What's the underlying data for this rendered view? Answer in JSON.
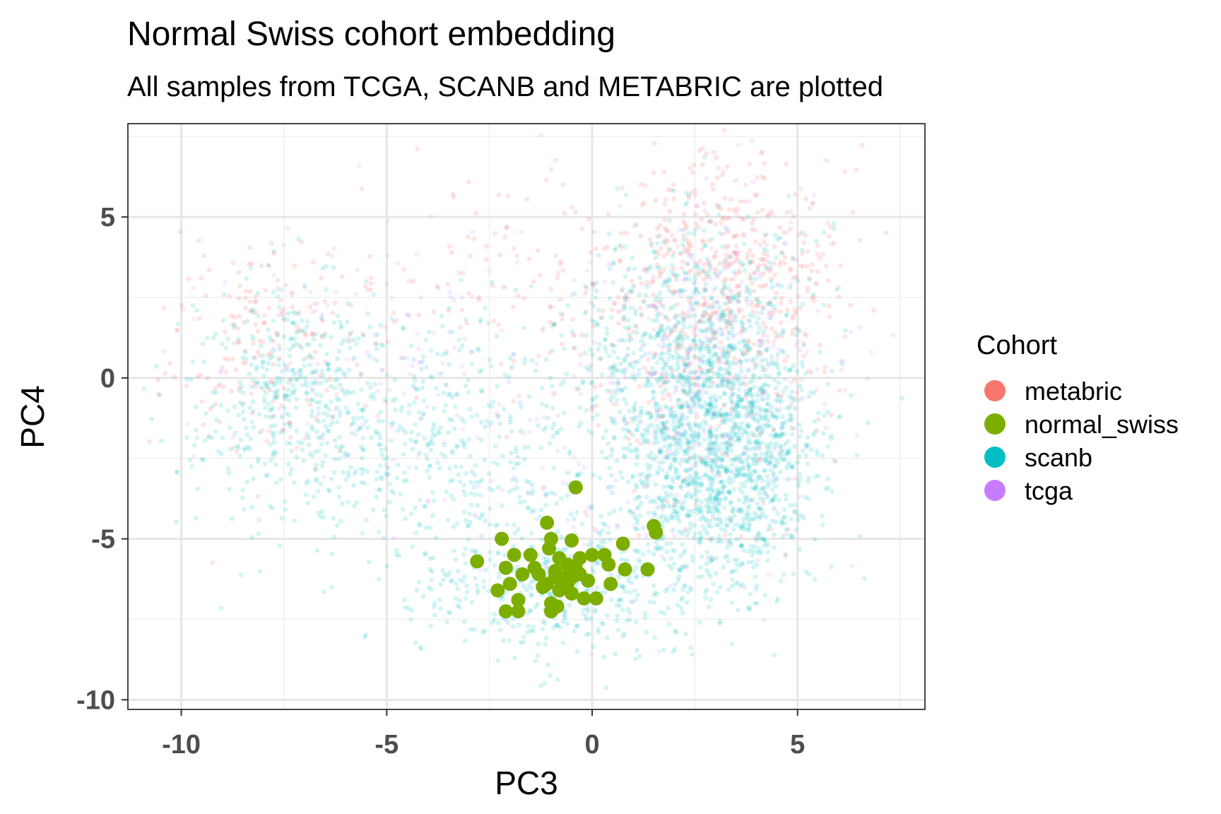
{
  "chart_data": {
    "type": "scatter",
    "title": "Normal Swiss cohort embedding",
    "subtitle": "All samples from TCGA, SCANB and METABRIC are plotted",
    "xlabel": "PC3",
    "ylabel": "PC4",
    "xlim": [
      -11.3,
      8.1
    ],
    "ylim": [
      -10.3,
      7.9
    ],
    "x_ticks": [
      -10,
      -5,
      0,
      5
    ],
    "y_ticks": [
      -10,
      -5,
      0,
      5
    ],
    "x_tick_labels": [
      "-10",
      "-5",
      "0",
      "5"
    ],
    "y_tick_labels": [
      "-10",
      "-5",
      "0",
      "5"
    ],
    "grid": true,
    "legend": {
      "title": "Cohort",
      "placement": "right",
      "entries": [
        "metabric",
        "normal_swiss",
        "scanb",
        "tcga"
      ]
    },
    "colors": {
      "metabric": "#F8766D",
      "normal_swiss": "#7CAE00",
      "scanb": "#00BFC4",
      "tcga": "#C77CFF"
    },
    "background_series": [
      {
        "name": "metabric",
        "alpha": 0.18,
        "note_count": 900,
        "regions": [
          {
            "cx": 3.5,
            "cy": 3.2,
            "sx": 1.3,
            "sy": 1.9,
            "w": 0.45
          },
          {
            "cx": -7.8,
            "cy": 1.0,
            "sx": 1.2,
            "sy": 1.8,
            "w": 0.2
          },
          {
            "cx": -1.0,
            "cy": 3.0,
            "sx": 2.5,
            "sy": 1.6,
            "w": 0.2
          },
          {
            "cx": 2.5,
            "cy": -2.0,
            "sx": 1.6,
            "sy": 2.2,
            "w": 0.15
          }
        ]
      },
      {
        "name": "scanb",
        "alpha": 0.16,
        "note_count": 3400,
        "regions": [
          {
            "cx": 3.0,
            "cy": -2.3,
            "sx": 1.2,
            "sy": 2.2,
            "w": 0.45
          },
          {
            "cx": 2.5,
            "cy": 1.5,
            "sx": 1.4,
            "sy": 1.8,
            "w": 0.15
          },
          {
            "cx": -7.5,
            "cy": -0.5,
            "sx": 1.2,
            "sy": 1.7,
            "w": 0.12
          },
          {
            "cx": -3.5,
            "cy": -2.0,
            "sx": 2.4,
            "sy": 2.0,
            "w": 0.16
          },
          {
            "cx": -0.8,
            "cy": -6.5,
            "sx": 1.8,
            "sy": 1.1,
            "w": 0.12
          }
        ]
      },
      {
        "name": "tcga",
        "alpha": 0.14,
        "note_count": 500,
        "regions": [
          {
            "cx": 3.0,
            "cy": 1.0,
            "sx": 1.6,
            "sy": 2.5,
            "w": 0.5
          },
          {
            "cx": -5.0,
            "cy": 0.5,
            "sx": 2.5,
            "sy": 2.0,
            "w": 0.3
          },
          {
            "cx": 0.5,
            "cy": -3.0,
            "sx": 2.0,
            "sy": 2.5,
            "w": 0.2
          }
        ]
      }
    ],
    "series": [
      {
        "name": "normal_swiss",
        "points": [
          [
            -0.4,
            -3.4
          ],
          [
            -1.1,
            -4.5
          ],
          [
            1.5,
            -4.6
          ],
          [
            1.55,
            -4.8
          ],
          [
            -2.2,
            -5.0
          ],
          [
            -1.0,
            -5.0
          ],
          [
            -0.5,
            -5.05
          ],
          [
            0.75,
            -5.15
          ],
          [
            -2.8,
            -5.7
          ],
          [
            -1.9,
            -5.5
          ],
          [
            -1.5,
            -5.5
          ],
          [
            -1.05,
            -5.3
          ],
          [
            -0.8,
            -5.6
          ],
          [
            -0.3,
            -5.6
          ],
          [
            0.0,
            -5.5
          ],
          [
            0.3,
            -5.5
          ],
          [
            -0.6,
            -5.8
          ],
          [
            0.4,
            -5.8
          ],
          [
            1.35,
            -5.95
          ],
          [
            0.8,
            -5.95
          ],
          [
            -2.1,
            -5.9
          ],
          [
            -1.7,
            -6.1
          ],
          [
            -1.3,
            -6.1
          ],
          [
            -0.9,
            -6.0
          ],
          [
            -0.4,
            -5.9
          ],
          [
            -0.1,
            -6.3
          ],
          [
            -0.9,
            -6.2
          ],
          [
            -0.6,
            -6.4
          ],
          [
            -2.3,
            -6.6
          ],
          [
            -2.0,
            -6.4
          ],
          [
            -1.2,
            -6.5
          ],
          [
            -0.8,
            -6.6
          ],
          [
            -0.5,
            -6.7
          ],
          [
            0.45,
            -6.4
          ],
          [
            -1.8,
            -6.9
          ],
          [
            -0.2,
            -6.85
          ],
          [
            0.1,
            -6.85
          ],
          [
            -1.0,
            -7.0
          ],
          [
            -2.1,
            -7.25
          ],
          [
            -1.8,
            -7.25
          ],
          [
            -1.0,
            -7.25
          ],
          [
            -0.85,
            -7.1
          ],
          [
            -0.7,
            -6.2
          ],
          [
            -1.4,
            -5.9
          ],
          [
            -0.5,
            -6.2
          ],
          [
            -1.1,
            -6.4
          ],
          [
            -0.3,
            -6.1
          ]
        ]
      }
    ]
  }
}
